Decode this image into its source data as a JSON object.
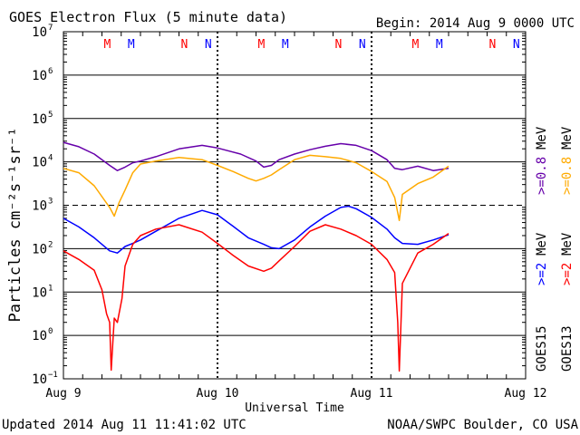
{
  "chart_data": {
    "type": "line",
    "title": "GOES Electron Flux (5 minute data)",
    "begin": "Begin: 2014 Aug 9 0000 UTC",
    "xlabel": "Universal Time",
    "ylabel": "Particles cm⁻²s⁻¹sr⁻¹",
    "yscale": "log",
    "ylim_exponents": [
      -1,
      7
    ],
    "ytick_base": "10",
    "yticks": [
      -1,
      0,
      1,
      2,
      3,
      4,
      5,
      6,
      7
    ],
    "x_unit": "days since 2014 Aug 9 0000 UTC",
    "xlim": [
      0,
      3
    ],
    "xticks": [
      {
        "value": 0,
        "label": "Aug 9"
      },
      {
        "value": 1,
        "label": "Aug 10"
      },
      {
        "value": 2,
        "label": "Aug 11"
      },
      {
        "value": 3,
        "label": "Aug 12"
      }
    ],
    "threshold_line": 3,
    "mn_markers": [
      {
        "x": 0.285,
        "label": "M",
        "color": "#ff0000"
      },
      {
        "x": 0.44,
        "label": "M",
        "color": "#0000ff"
      },
      {
        "x": 0.785,
        "label": "N",
        "color": "#ff0000"
      },
      {
        "x": 0.94,
        "label": "N",
        "color": "#0000ff"
      },
      {
        "x": 1.285,
        "label": "M",
        "color": "#ff0000"
      },
      {
        "x": 1.44,
        "label": "M",
        "color": "#0000ff"
      },
      {
        "x": 1.785,
        "label": "N",
        "color": "#ff0000"
      },
      {
        "x": 1.94,
        "label": "N",
        "color": "#0000ff"
      },
      {
        "x": 2.285,
        "label": "M",
        "color": "#ff0000"
      },
      {
        "x": 2.44,
        "label": "M",
        "color": "#0000ff"
      },
      {
        "x": 2.785,
        "label": "N",
        "color": "#ff0000"
      },
      {
        "x": 2.94,
        "label": "N",
        "color": "#0000ff"
      }
    ],
    "series": [
      {
        "name": "GOES15 >=0.8 MeV",
        "color": "#6600aa",
        "x": [
          0,
          0.1,
          0.2,
          0.3,
          0.35,
          0.4,
          0.45,
          0.5,
          0.6,
          0.75,
          0.9,
          1.0,
          1.15,
          1.25,
          1.3,
          1.35,
          1.4,
          1.5,
          1.6,
          1.7,
          1.8,
          1.9,
          2.0,
          2.1,
          2.15,
          2.2,
          2.3,
          2.4,
          2.5
        ],
        "y": [
          4.45,
          4.35,
          4.18,
          3.92,
          3.8,
          3.88,
          3.98,
          4.02,
          4.12,
          4.3,
          4.38,
          4.32,
          4.18,
          4.02,
          3.88,
          3.92,
          4.05,
          4.18,
          4.28,
          4.36,
          4.42,
          4.38,
          4.26,
          4.05,
          3.85,
          3.82,
          3.9,
          3.8,
          3.85
        ]
      },
      {
        "name": "GOES13 >=0.8 MeV",
        "color": "#ffaa00",
        "x": [
          0,
          0.1,
          0.2,
          0.3,
          0.33,
          0.36,
          0.4,
          0.45,
          0.5,
          0.6,
          0.75,
          0.9,
          1.0,
          1.1,
          1.2,
          1.25,
          1.3,
          1.35,
          1.4,
          1.5,
          1.6,
          1.7,
          1.8,
          1.9,
          2.0,
          2.1,
          2.15,
          2.18,
          2.2,
          2.3,
          2.4,
          2.5
        ],
        "y": [
          3.85,
          3.75,
          3.45,
          2.95,
          2.75,
          3.05,
          3.35,
          3.75,
          3.95,
          4.02,
          4.1,
          4.05,
          3.92,
          3.78,
          3.62,
          3.56,
          3.62,
          3.7,
          3.82,
          4.05,
          4.15,
          4.12,
          4.08,
          3.98,
          3.78,
          3.55,
          3.18,
          2.65,
          3.25,
          3.5,
          3.65,
          3.9
        ]
      },
      {
        "name": "GOES15 >=2 MeV",
        "color": "#0000ff",
        "x": [
          0,
          0.1,
          0.2,
          0.3,
          0.35,
          0.4,
          0.45,
          0.5,
          0.6,
          0.75,
          0.9,
          1.0,
          1.1,
          1.2,
          1.3,
          1.35,
          1.4,
          1.5,
          1.6,
          1.7,
          1.8,
          1.85,
          1.9,
          2.0,
          2.1,
          2.15,
          2.2,
          2.3,
          2.4,
          2.5
        ],
        "y": [
          2.7,
          2.5,
          2.25,
          1.95,
          1.9,
          2.05,
          2.12,
          2.2,
          2.4,
          2.7,
          2.88,
          2.78,
          2.52,
          2.25,
          2.1,
          2.02,
          2.0,
          2.2,
          2.5,
          2.75,
          2.95,
          2.98,
          2.92,
          2.72,
          2.45,
          2.25,
          2.12,
          2.1,
          2.2,
          2.32
        ]
      },
      {
        "name": "GOES13 >=2 MeV",
        "color": "#ff0000",
        "x": [
          0,
          0.1,
          0.2,
          0.25,
          0.28,
          0.3,
          0.31,
          0.33,
          0.35,
          0.38,
          0.4,
          0.45,
          0.5,
          0.6,
          0.75,
          0.9,
          1.0,
          1.1,
          1.2,
          1.3,
          1.35,
          1.4,
          1.5,
          1.6,
          1.7,
          1.8,
          1.9,
          2.0,
          2.1,
          2.15,
          2.17,
          2.18,
          2.2,
          2.3,
          2.4,
          2.5
        ],
        "y": [
          1.95,
          1.75,
          1.5,
          1.05,
          0.5,
          0.3,
          -0.8,
          0.4,
          0.3,
          0.85,
          1.6,
          2.1,
          2.3,
          2.45,
          2.55,
          2.38,
          2.12,
          1.85,
          1.6,
          1.48,
          1.55,
          1.72,
          2.05,
          2.4,
          2.55,
          2.45,
          2.3,
          2.1,
          1.75,
          1.45,
          0.3,
          -0.82,
          1.2,
          1.9,
          2.1,
          2.35
        ]
      }
    ],
    "legend": {
      "placement": "right",
      "columns": [
        {
          "satellite": "GOES15",
          "color": "#0000ff",
          "energy_low": ">=2",
          "color_high": "#6600aa",
          "energy_high": ">=0.8",
          "unit": "MeV"
        },
        {
          "satellite": "GOES13",
          "color": "#ff0000",
          "energy_low": ">=2",
          "color_high": "#ffaa00",
          "energy_high": ">=0.8",
          "unit": "MeV"
        }
      ]
    }
  },
  "footer": {
    "updated": "Updated 2014 Aug 11 11:41:02 UTC",
    "credit": "NOAA/SWPC Boulder, CO USA"
  }
}
